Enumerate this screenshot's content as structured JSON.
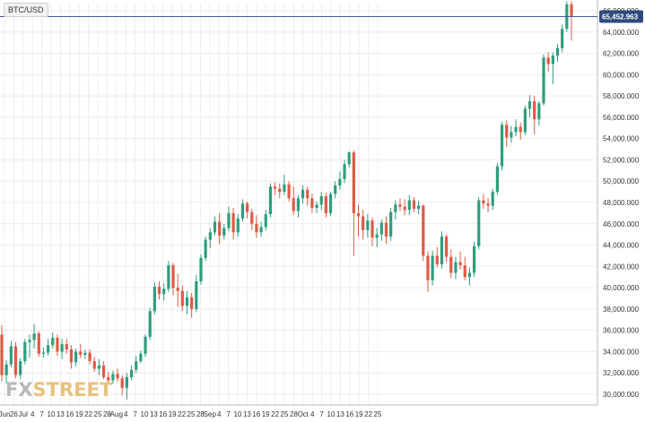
{
  "symbol": "BTC/USD",
  "current_price_label": "65,452.963",
  "logo": {
    "part1": "FX",
    "part2": "STREET"
  },
  "colors": {
    "up": "#2e9e7f",
    "down": "#e05a45",
    "grid": "#ececec",
    "price_line": "#3f5f8e",
    "price_badge": "#2e4b7a",
    "axis_text": "#333333"
  },
  "chart_data": {
    "type": "candlestick",
    "y_ticks": [
      "30,000.000",
      "32,000.000",
      "34,000.000",
      "36,000.000",
      "38,000.000",
      "40,000.000",
      "42,000.000",
      "44,000.000",
      "46,000.000",
      "48,000.000",
      "50,000.000",
      "52,000.000",
      "54,000.000",
      "56,000.000",
      "58,000.000",
      "60,000.000",
      "62,000.000",
      "64,000.000",
      "66,000.000"
    ],
    "y_tick_values": [
      30000,
      32000,
      34000,
      36000,
      38000,
      40000,
      42000,
      44000,
      46000,
      48000,
      50000,
      52000,
      54000,
      56000,
      58000,
      60000,
      62000,
      64000,
      66000
    ],
    "ylim": [
      29000,
      67800
    ],
    "x_tick_labels": [
      "Jun",
      "26",
      "Jul",
      "4",
      "7",
      "10",
      "13",
      "16",
      "19",
      "22",
      "25",
      "28",
      "Aug",
      "4",
      "7",
      "10",
      "13",
      "16",
      "19",
      "22",
      "25",
      "28",
      "Sep",
      "4",
      "7",
      "10",
      "13",
      "16",
      "19",
      "22",
      "25",
      "28",
      "Oct",
      "4",
      "7",
      "10",
      "13",
      "16",
      "19",
      "22",
      "25"
    ],
    "current_price": 65452.963,
    "candles": [
      {
        "o": 35600,
        "h": 36500,
        "l": 31200,
        "c": 31800
      },
      {
        "o": 31800,
        "h": 33200,
        "l": 31000,
        "c": 32800
      },
      {
        "o": 32800,
        "h": 35000,
        "l": 32500,
        "c": 34500
      },
      {
        "o": 34500,
        "h": 34900,
        "l": 31500,
        "c": 31800
      },
      {
        "o": 31800,
        "h": 33400,
        "l": 31400,
        "c": 33100
      },
      {
        "o": 33100,
        "h": 35200,
        "l": 32800,
        "c": 34900
      },
      {
        "o": 34900,
        "h": 35600,
        "l": 33400,
        "c": 35100
      },
      {
        "o": 35100,
        "h": 36600,
        "l": 34300,
        "c": 35700
      },
      {
        "o": 35700,
        "h": 35900,
        "l": 33500,
        "c": 33800
      },
      {
        "o": 33800,
        "h": 34400,
        "l": 33400,
        "c": 33900
      },
      {
        "o": 33900,
        "h": 35200,
        "l": 33600,
        "c": 34600
      },
      {
        "o": 34600,
        "h": 35800,
        "l": 34300,
        "c": 35300
      },
      {
        "o": 35300,
        "h": 35600,
        "l": 33600,
        "c": 34000
      },
      {
        "o": 34000,
        "h": 35200,
        "l": 33300,
        "c": 34700
      },
      {
        "o": 34700,
        "h": 35200,
        "l": 33800,
        "c": 34200
      },
      {
        "o": 34200,
        "h": 34600,
        "l": 32400,
        "c": 33000
      },
      {
        "o": 33000,
        "h": 34300,
        "l": 32600,
        "c": 34000
      },
      {
        "o": 34000,
        "h": 34700,
        "l": 33400,
        "c": 33700
      },
      {
        "o": 33700,
        "h": 34200,
        "l": 33300,
        "c": 33900
      },
      {
        "o": 33900,
        "h": 34200,
        "l": 32800,
        "c": 33100
      },
      {
        "o": 33100,
        "h": 33500,
        "l": 32100,
        "c": 32400
      },
      {
        "o": 32400,
        "h": 33300,
        "l": 31800,
        "c": 32700
      },
      {
        "o": 32700,
        "h": 33100,
        "l": 31400,
        "c": 31600
      },
      {
        "o": 31600,
        "h": 32100,
        "l": 30900,
        "c": 31300
      },
      {
        "o": 31300,
        "h": 32200,
        "l": 31000,
        "c": 31900
      },
      {
        "o": 31900,
        "h": 32400,
        "l": 31200,
        "c": 31500
      },
      {
        "o": 31500,
        "h": 31800,
        "l": 29900,
        "c": 30600
      },
      {
        "o": 30600,
        "h": 32000,
        "l": 29500,
        "c": 31600
      },
      {
        "o": 31600,
        "h": 32700,
        "l": 31300,
        "c": 32300
      },
      {
        "o": 32300,
        "h": 33600,
        "l": 32000,
        "c": 33100
      },
      {
        "o": 33100,
        "h": 34100,
        "l": 32900,
        "c": 33800
      },
      {
        "o": 33800,
        "h": 35600,
        "l": 33500,
        "c": 35400
      },
      {
        "o": 35400,
        "h": 38100,
        "l": 35100,
        "c": 37800
      },
      {
        "o": 37800,
        "h": 40500,
        "l": 37500,
        "c": 40100
      },
      {
        "o": 40100,
        "h": 40600,
        "l": 38900,
        "c": 39400
      },
      {
        "o": 39400,
        "h": 40400,
        "l": 38800,
        "c": 39900
      },
      {
        "o": 39900,
        "h": 42500,
        "l": 39600,
        "c": 42100
      },
      {
        "o": 42100,
        "h": 42300,
        "l": 39300,
        "c": 40000
      },
      {
        "o": 40000,
        "h": 41300,
        "l": 38200,
        "c": 39700
      },
      {
        "o": 39700,
        "h": 40200,
        "l": 37800,
        "c": 38300
      },
      {
        "o": 38300,
        "h": 39700,
        "l": 37500,
        "c": 39100
      },
      {
        "o": 39100,
        "h": 39500,
        "l": 37200,
        "c": 38000
      },
      {
        "o": 38000,
        "h": 41200,
        "l": 37700,
        "c": 40600
      },
      {
        "o": 40600,
        "h": 43100,
        "l": 40300,
        "c": 42800
      },
      {
        "o": 42800,
        "h": 44800,
        "l": 42500,
        "c": 44500
      },
      {
        "o": 44500,
        "h": 45600,
        "l": 43700,
        "c": 45200
      },
      {
        "o": 45200,
        "h": 46700,
        "l": 44900,
        "c": 46200
      },
      {
        "o": 46200,
        "h": 47000,
        "l": 44100,
        "c": 44900
      },
      {
        "o": 44900,
        "h": 46000,
        "l": 44500,
        "c": 45600
      },
      {
        "o": 45600,
        "h": 47600,
        "l": 45300,
        "c": 47000
      },
      {
        "o": 47000,
        "h": 47500,
        "l": 44500,
        "c": 45200
      },
      {
        "o": 45200,
        "h": 46900,
        "l": 44800,
        "c": 46500
      },
      {
        "o": 46500,
        "h": 48300,
        "l": 46200,
        "c": 47900
      },
      {
        "o": 47900,
        "h": 48100,
        "l": 46500,
        "c": 47100
      },
      {
        "o": 47100,
        "h": 47400,
        "l": 45400,
        "c": 46000
      },
      {
        "o": 46000,
        "h": 46800,
        "l": 44700,
        "c": 45200
      },
      {
        "o": 45200,
        "h": 46200,
        "l": 44800,
        "c": 45700
      },
      {
        "o": 45700,
        "h": 47300,
        "l": 45400,
        "c": 46900
      },
      {
        "o": 46900,
        "h": 49800,
        "l": 46600,
        "c": 49500
      },
      {
        "o": 49500,
        "h": 49900,
        "l": 48700,
        "c": 49300
      },
      {
        "o": 49300,
        "h": 49800,
        "l": 48400,
        "c": 49000
      },
      {
        "o": 49000,
        "h": 50600,
        "l": 48700,
        "c": 49700
      },
      {
        "o": 49700,
        "h": 50000,
        "l": 48100,
        "c": 48400
      },
      {
        "o": 48400,
        "h": 49500,
        "l": 46800,
        "c": 47200
      },
      {
        "o": 47200,
        "h": 48700,
        "l": 46600,
        "c": 48400
      },
      {
        "o": 48400,
        "h": 49600,
        "l": 47900,
        "c": 49200
      },
      {
        "o": 49200,
        "h": 49500,
        "l": 47700,
        "c": 48400
      },
      {
        "o": 48400,
        "h": 48800,
        "l": 47000,
        "c": 47500
      },
      {
        "o": 47500,
        "h": 48100,
        "l": 47000,
        "c": 47800
      },
      {
        "o": 47800,
        "h": 49000,
        "l": 47300,
        "c": 48600
      },
      {
        "o": 48600,
        "h": 48900,
        "l": 46600,
        "c": 47000
      },
      {
        "o": 47000,
        "h": 49000,
        "l": 46700,
        "c": 48800
      },
      {
        "o": 48800,
        "h": 50000,
        "l": 48400,
        "c": 49600
      },
      {
        "o": 49600,
        "h": 50900,
        "l": 49200,
        "c": 50200
      },
      {
        "o": 50200,
        "h": 52000,
        "l": 49800,
        "c": 51600
      },
      {
        "o": 51600,
        "h": 52800,
        "l": 51300,
        "c": 52700
      },
      {
        "o": 52700,
        "h": 52900,
        "l": 43000,
        "c": 47000
      },
      {
        "o": 47000,
        "h": 47800,
        "l": 44800,
        "c": 46700
      },
      {
        "o": 46700,
        "h": 47300,
        "l": 44500,
        "c": 45400
      },
      {
        "o": 45400,
        "h": 46900,
        "l": 44700,
        "c": 46300
      },
      {
        "o": 46300,
        "h": 46600,
        "l": 43900,
        "c": 44700
      },
      {
        "o": 44700,
        "h": 45600,
        "l": 43800,
        "c": 45000
      },
      {
        "o": 45000,
        "h": 46400,
        "l": 44400,
        "c": 46100
      },
      {
        "o": 46100,
        "h": 46700,
        "l": 44100,
        "c": 44800
      },
      {
        "o": 44800,
        "h": 47500,
        "l": 44400,
        "c": 47100
      },
      {
        "o": 47100,
        "h": 48200,
        "l": 46400,
        "c": 47800
      },
      {
        "o": 47800,
        "h": 48400,
        "l": 47200,
        "c": 47600
      },
      {
        "o": 47600,
        "h": 48300,
        "l": 46800,
        "c": 47300
      },
      {
        "o": 47300,
        "h": 48700,
        "l": 46800,
        "c": 48200
      },
      {
        "o": 48200,
        "h": 48500,
        "l": 47100,
        "c": 47400
      },
      {
        "o": 47400,
        "h": 48200,
        "l": 46900,
        "c": 47700
      },
      {
        "o": 47700,
        "h": 47800,
        "l": 42500,
        "c": 43000
      },
      {
        "o": 43000,
        "h": 43400,
        "l": 39600,
        "c": 40700
      },
      {
        "o": 40700,
        "h": 43500,
        "l": 40200,
        "c": 43000
      },
      {
        "o": 43000,
        "h": 43800,
        "l": 41900,
        "c": 42200
      },
      {
        "o": 42200,
        "h": 45300,
        "l": 41800,
        "c": 44800
      },
      {
        "o": 44800,
        "h": 45000,
        "l": 42400,
        "c": 42900
      },
      {
        "o": 42900,
        "h": 43600,
        "l": 40900,
        "c": 41400
      },
      {
        "o": 41400,
        "h": 42900,
        "l": 40800,
        "c": 42400
      },
      {
        "o": 42400,
        "h": 43400,
        "l": 41700,
        "c": 42100
      },
      {
        "o": 42100,
        "h": 42900,
        "l": 40700,
        "c": 41000
      },
      {
        "o": 41000,
        "h": 41900,
        "l": 40200,
        "c": 41400
      },
      {
        "o": 41400,
        "h": 44300,
        "l": 41000,
        "c": 43900
      },
      {
        "o": 43900,
        "h": 48500,
        "l": 43600,
        "c": 48200
      },
      {
        "o": 48200,
        "h": 48800,
        "l": 47400,
        "c": 47900
      },
      {
        "o": 47900,
        "h": 48400,
        "l": 47100,
        "c": 47700
      },
      {
        "o": 47700,
        "h": 49300,
        "l": 47300,
        "c": 49000
      },
      {
        "o": 49000,
        "h": 51700,
        "l": 48700,
        "c": 51400
      },
      {
        "o": 51400,
        "h": 55600,
        "l": 51000,
        "c": 55300
      },
      {
        "o": 55300,
        "h": 55700,
        "l": 53200,
        "c": 54100
      },
      {
        "o": 54100,
        "h": 55200,
        "l": 53600,
        "c": 54600
      },
      {
        "o": 54600,
        "h": 55800,
        "l": 54200,
        "c": 55100
      },
      {
        "o": 55100,
        "h": 55500,
        "l": 53900,
        "c": 54600
      },
      {
        "o": 54600,
        "h": 57100,
        "l": 54300,
        "c": 56800
      },
      {
        "o": 56800,
        "h": 58100,
        "l": 56000,
        "c": 57500
      },
      {
        "o": 57500,
        "h": 58000,
        "l": 54400,
        "c": 55800
      },
      {
        "o": 55800,
        "h": 57500,
        "l": 55200,
        "c": 57300
      },
      {
        "o": 57300,
        "h": 61900,
        "l": 57100,
        "c": 61600
      },
      {
        "o": 61600,
        "h": 62100,
        "l": 60300,
        "c": 61000
      },
      {
        "o": 61000,
        "h": 62100,
        "l": 59100,
        "c": 61800
      },
      {
        "o": 61800,
        "h": 62900,
        "l": 61200,
        "c": 62500
      },
      {
        "o": 62500,
        "h": 64700,
        "l": 62100,
        "c": 64300
      },
      {
        "o": 64300,
        "h": 66900,
        "l": 64000,
        "c": 66600
      },
      {
        "o": 66600,
        "h": 66900,
        "l": 63200,
        "c": 65453
      }
    ]
  }
}
